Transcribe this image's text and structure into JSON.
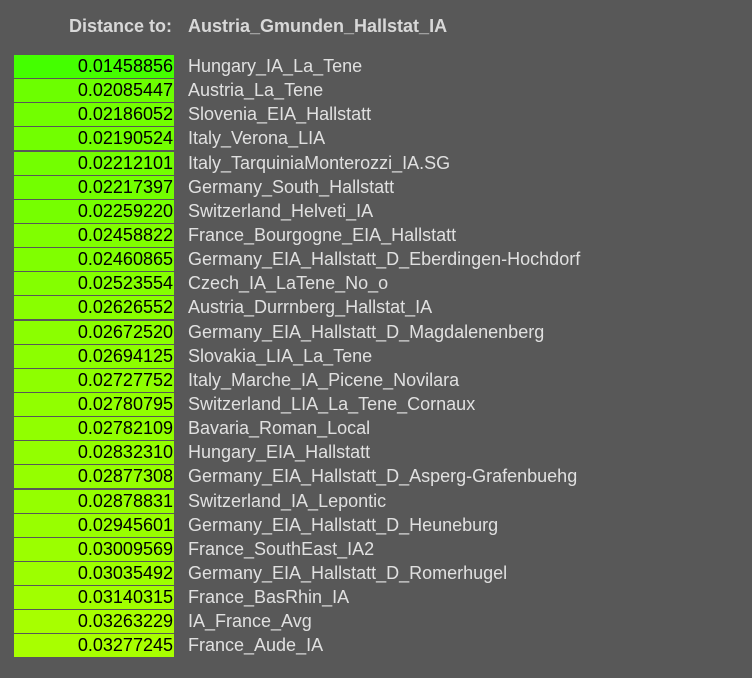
{
  "header": {
    "label": "Distance to:",
    "target": "Austria_Gmunden_Hallstat_IA"
  },
  "rows": [
    {
      "value": "0.01458856",
      "name": "Hungary_IA_La_Tene",
      "color": "#44ff00"
    },
    {
      "value": "0.02085447",
      "name": "Austria_La_Tene",
      "color": "#6cff00"
    },
    {
      "value": "0.02186052",
      "name": "Slovenia_EIA_Hallstatt",
      "color": "#72ff00"
    },
    {
      "value": "0.02190524",
      "name": "Italy_Verona_LIA",
      "color": "#72ff00"
    },
    {
      "value": "0.02212101",
      "name": "Italy_TarquiniaMonterozzi_IA.SG",
      "color": "#73ff00"
    },
    {
      "value": "0.02217397",
      "name": "Germany_South_Hallstatt",
      "color": "#73ff00"
    },
    {
      "value": "0.02259220",
      "name": "Switzerland_Helveti_IA",
      "color": "#76ff00"
    },
    {
      "value": "0.02458822",
      "name": "France_Bourgogne_EIA_Hallstatt",
      "color": "#80ff00"
    },
    {
      "value": "0.02460865",
      "name": "Germany_EIA_Hallstatt_D_Eberdingen-Hochdorf",
      "color": "#80ff00"
    },
    {
      "value": "0.02523554",
      "name": "Czech_IA_LaTene_No_o",
      "color": "#84ff00"
    },
    {
      "value": "0.02626552",
      "name": "Austria_Durrnberg_Hallstat_IA",
      "color": "#89ff00"
    },
    {
      "value": "0.02672520",
      "name": "Germany_EIA_Hallstatt_D_Magdalenenberg",
      "color": "#8bff00"
    },
    {
      "value": "0.02694125",
      "name": "Slovakia_LIA_La_Tene",
      "color": "#8cff00"
    },
    {
      "value": "0.02727752",
      "name": "Italy_Marche_IA_Picene_Novilara",
      "color": "#8eff00"
    },
    {
      "value": "0.02780795",
      "name": "Switzerland_LIA_La_Tene_Cornaux",
      "color": "#91ff00"
    },
    {
      "value": "0.02782109",
      "name": "Bavaria_Roman_Local",
      "color": "#91ff00"
    },
    {
      "value": "0.02832310",
      "name": "Hungary_EIA_Hallstatt",
      "color": "#93ff00"
    },
    {
      "value": "0.02877308",
      "name": "Germany_EIA_Hallstatt_D_Asperg-Grafenbuehg",
      "color": "#95ff00"
    },
    {
      "value": "0.02878831",
      "name": "Switzerland_IA_Lepontic",
      "color": "#95ff00"
    },
    {
      "value": "0.02945601",
      "name": "Germany_EIA_Hallstatt_D_Heuneburg",
      "color": "#98ff00"
    },
    {
      "value": "0.03009569",
      "name": "France_SouthEast_IA2",
      "color": "#9bff00"
    },
    {
      "value": "0.03035492",
      "name": "Germany_EIA_Hallstatt_D_Romerhugel",
      "color": "#9dff00"
    },
    {
      "value": "0.03140315",
      "name": "France_BasRhin_IA",
      "color": "#a1ff00"
    },
    {
      "value": "0.03263229",
      "name": "IA_France_Avg",
      "color": "#a7ff00"
    },
    {
      "value": "0.03277245",
      "name": "France_Aude_IA",
      "color": "#a8ff00"
    }
  ]
}
